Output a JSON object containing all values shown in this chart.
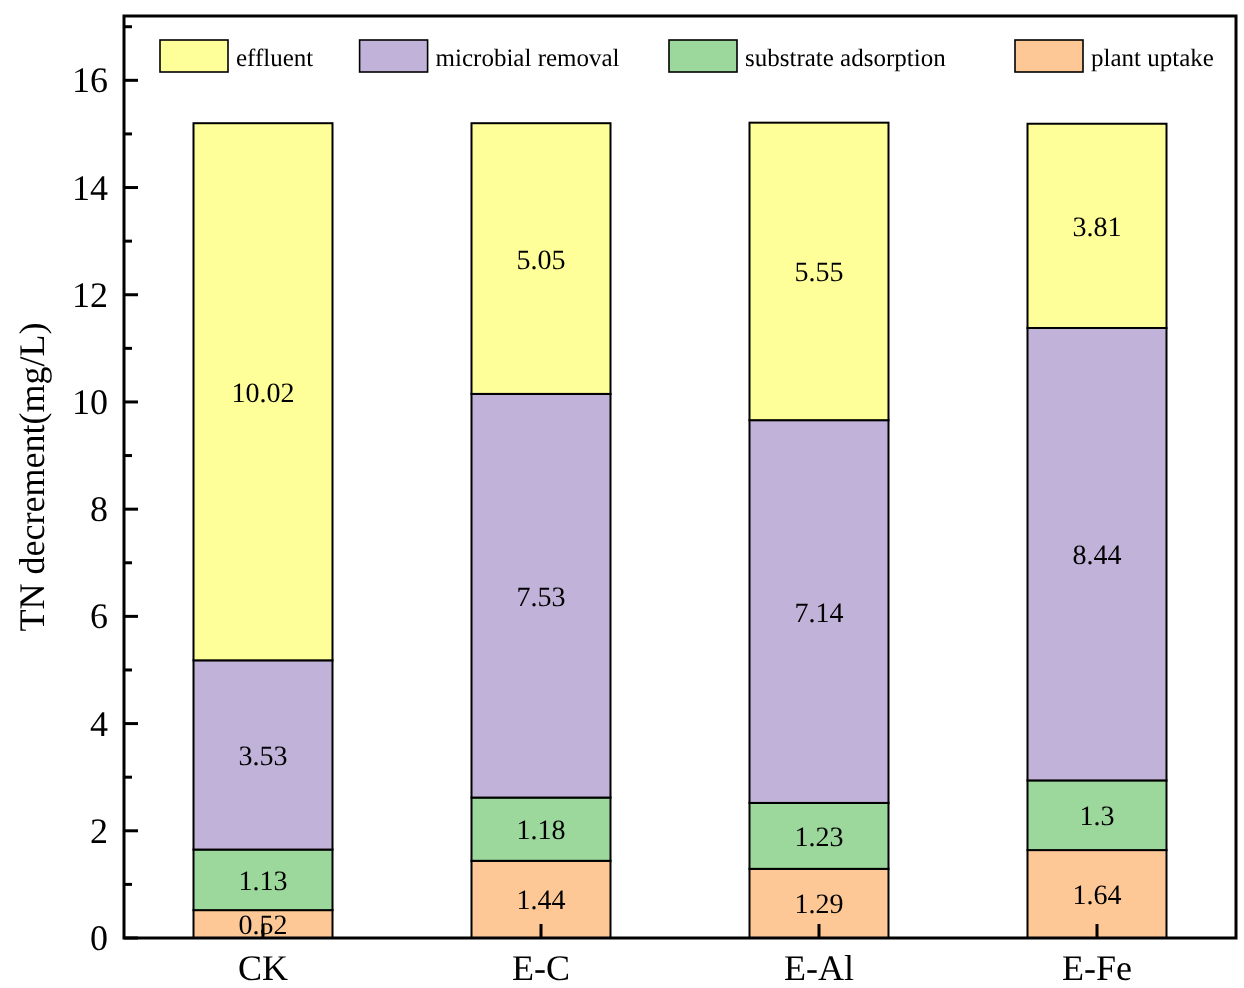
{
  "chart_data": {
    "type": "bar",
    "stacked": true,
    "ylabel": "TN decrement(mg/L)",
    "categories": [
      "CK",
      "E-C",
      "E-Al",
      "E-Fe"
    ],
    "series": [
      {
        "name": "plant uptake",
        "color": "#fdc895",
        "values": [
          0.52,
          1.44,
          1.29,
          1.64
        ]
      },
      {
        "name": "substrate adsorption",
        "color": "#9cd89c",
        "values": [
          1.13,
          1.18,
          1.23,
          1.3
        ]
      },
      {
        "name": "microbial removal",
        "color": "#c0b2d8",
        "values": [
          3.53,
          7.53,
          7.14,
          8.44
        ]
      },
      {
        "name": "effluent",
        "color": "#ffff99",
        "values": [
          10.02,
          5.05,
          5.55,
          3.81
        ]
      }
    ],
    "ylim": [
      0,
      17.2
    ],
    "yticks": [
      0,
      {
        "value": 1,
        "label": null
      },
      2,
      {
        "value": 3,
        "label": null
      },
      4,
      {
        "value": 5,
        "label": null
      },
      6,
      {
        "value": 7,
        "label": null
      },
      8,
      {
        "value": 9,
        "label": null
      },
      10,
      {
        "value": 11,
        "label": null
      },
      12,
      {
        "value": 13,
        "label": null
      },
      14,
      {
        "value": 15,
        "label": null
      },
      16,
      {
        "value": 17,
        "label": null
      }
    ],
    "data_labels": true,
    "legend": "top",
    "grid": false
  }
}
